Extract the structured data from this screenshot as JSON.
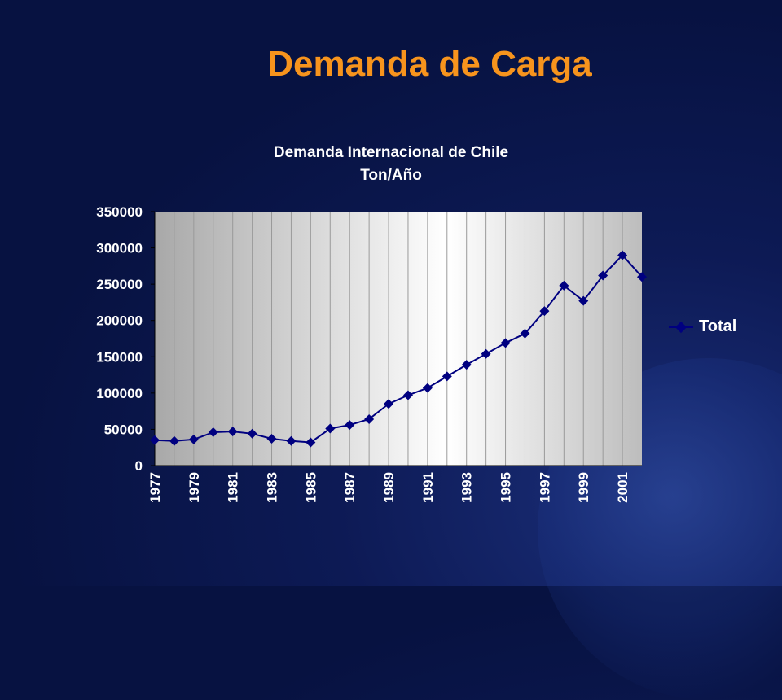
{
  "slide": {
    "title": "Demanda de Carga"
  },
  "chart_data": {
    "type": "line",
    "title": [
      "Demanda Internacional de Chile",
      "Ton/Año"
    ],
    "x": [
      1977,
      1978,
      1979,
      1980,
      1981,
      1982,
      1983,
      1984,
      1985,
      1986,
      1987,
      1988,
      1989,
      1990,
      1991,
      1992,
      1993,
      1994,
      1995,
      1996,
      1997,
      1998,
      1999,
      2000,
      2001,
      2002
    ],
    "x_tick_labels": [
      "1977",
      "1979",
      "1981",
      "1983",
      "1985",
      "1987",
      "1989",
      "1991",
      "1993",
      "1995",
      "1997",
      "1999",
      "2001"
    ],
    "series": [
      {
        "name": "Total",
        "values": [
          35000,
          34000,
          36000,
          46000,
          47000,
          44000,
          37000,
          34000,
          32000,
          51000,
          56000,
          64000,
          85000,
          97000,
          107000,
          123000,
          139000,
          154000,
          169000,
          182000,
          213000,
          248000,
          227000,
          262000,
          290000,
          260000
        ],
        "color": "#000080"
      }
    ],
    "y_ticks": [
      "0",
      "50000",
      "100000",
      "150000",
      "200000",
      "250000",
      "300000",
      "350000"
    ],
    "ylim": [
      0,
      350000
    ],
    "grid": "vertical",
    "legend_position": "right"
  }
}
